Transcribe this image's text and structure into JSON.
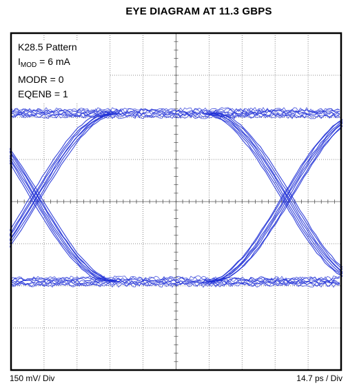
{
  "chart_data": {
    "type": "eye-diagram",
    "title": "EYE DIAGRAM AT 11.3 GBPS",
    "annotations": {
      "pattern": "K28.5 Pattern",
      "imod_label": "I",
      "imod_sub": "MOD",
      "imod_value": " = 6 mA",
      "modr": "MODR = 0",
      "eqenb": "EQENB = 1"
    },
    "vertical_scale": "150 mV/ Div",
    "horizontal_scale": "14.7 ps / Div",
    "grid": {
      "divisions_x": 10,
      "divisions_y": 8
    },
    "levels_div": {
      "high": 2.1,
      "low": -1.9
    },
    "crossings_div": [
      -4.25,
      3.35
    ],
    "trace_color": "#1f2fd6"
  }
}
